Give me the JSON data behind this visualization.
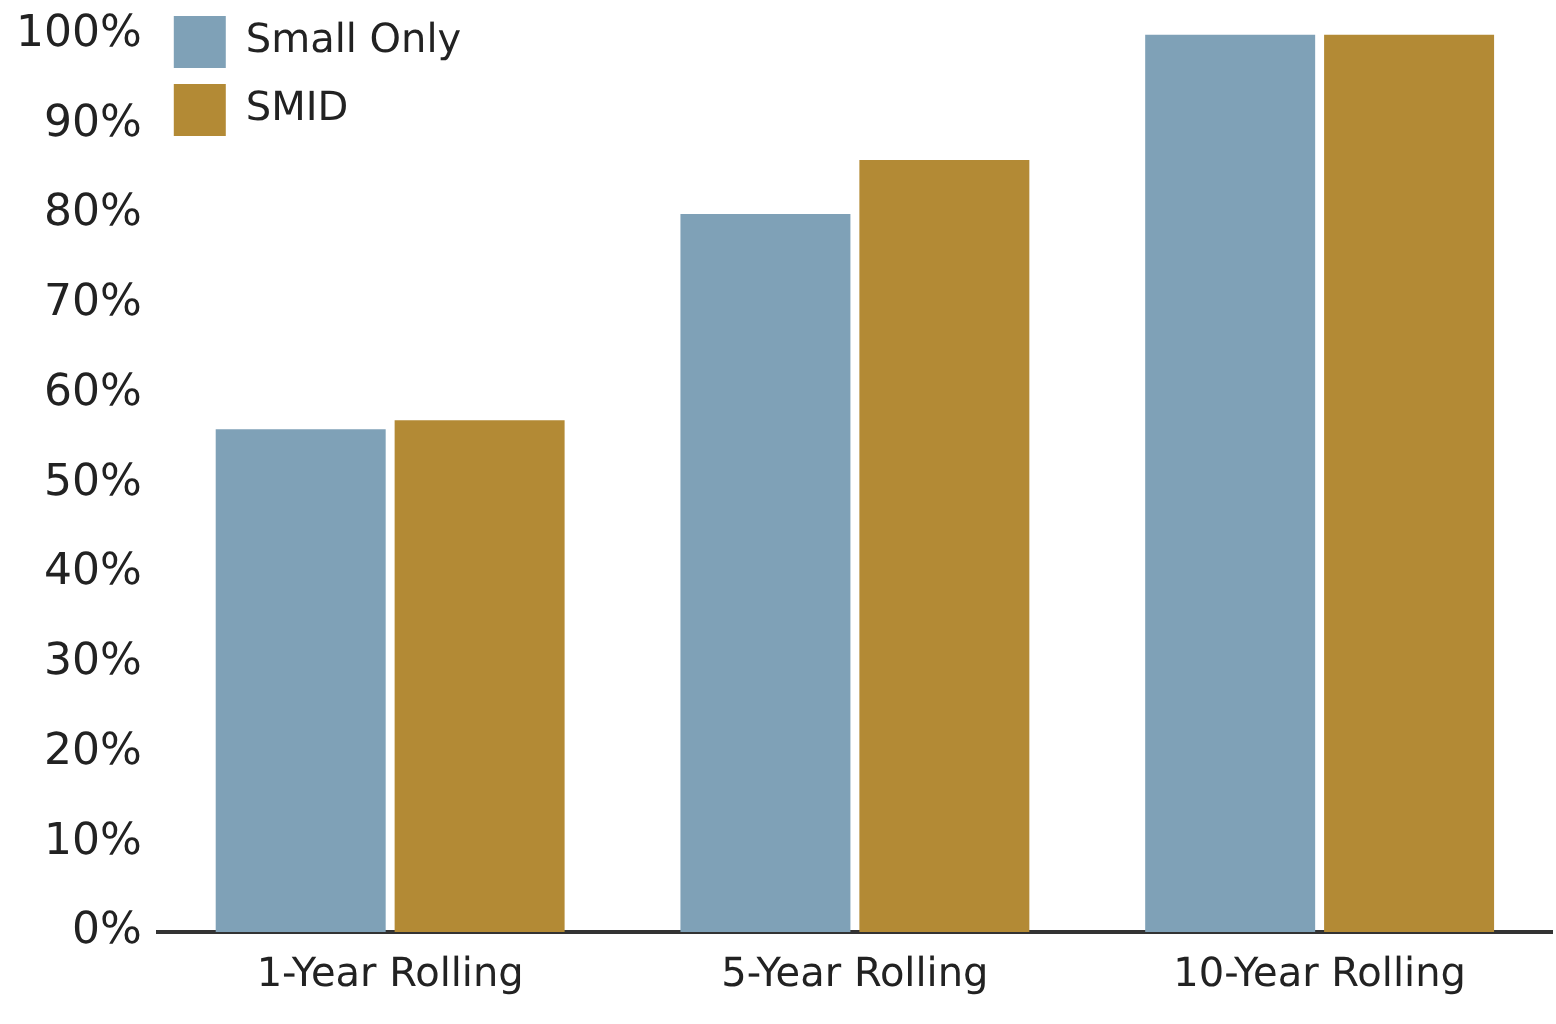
{
  "chart_data": {
    "type": "bar",
    "categories": [
      "1-Year Rolling",
      "5-Year Rolling",
      "10-Year Rolling"
    ],
    "series": [
      {
        "name": "Small Only",
        "color": "#7fa1b7",
        "values": [
          56,
          80,
          100
        ]
      },
      {
        "name": "SMID",
        "color": "#b38a35",
        "values": [
          57,
          86,
          100
        ]
      }
    ],
    "ylim": [
      0,
      100
    ],
    "yticks": [
      {
        "value": 0,
        "label": "0%"
      },
      {
        "value": 10,
        "label": "10%"
      },
      {
        "value": 20,
        "label": "20%"
      },
      {
        "value": 30,
        "label": "30%"
      },
      {
        "value": 40,
        "label": "40%"
      },
      {
        "value": 50,
        "label": "50%"
      },
      {
        "value": 60,
        "label": "60%"
      },
      {
        "value": 70,
        "label": "70%"
      },
      {
        "value": 80,
        "label": "80%"
      },
      {
        "value": 90,
        "label": "90%"
      },
      {
        "value": 100,
        "label": "100%"
      }
    ],
    "grid": false,
    "legend": "top left"
  }
}
